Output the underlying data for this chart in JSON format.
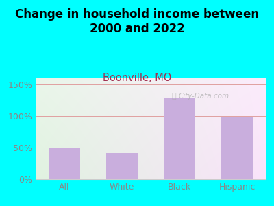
{
  "title": "Change in household income between\n2000 and 2022",
  "subtitle": "Boonville, MO",
  "categories": [
    "All",
    "White",
    "Black",
    "Hispanic"
  ],
  "values": [
    50,
    41,
    128,
    98
  ],
  "bar_color": "#c9aedd",
  "background_color": "#00ffff",
  "title_fontsize": 12,
  "title_color": "#000000",
  "subtitle_fontsize": 10.5,
  "subtitle_color": "#a03050",
  "tick_label_fontsize": 9,
  "axis_label_color": "#888888",
  "grid_color": "#e0a0a0",
  "ylim": [
    0,
    160
  ],
  "yticks": [
    0,
    50,
    100,
    150
  ],
  "ytick_labels": [
    "0%",
    "50%",
    "100%",
    "150%"
  ],
  "watermark": "City-Data.com"
}
